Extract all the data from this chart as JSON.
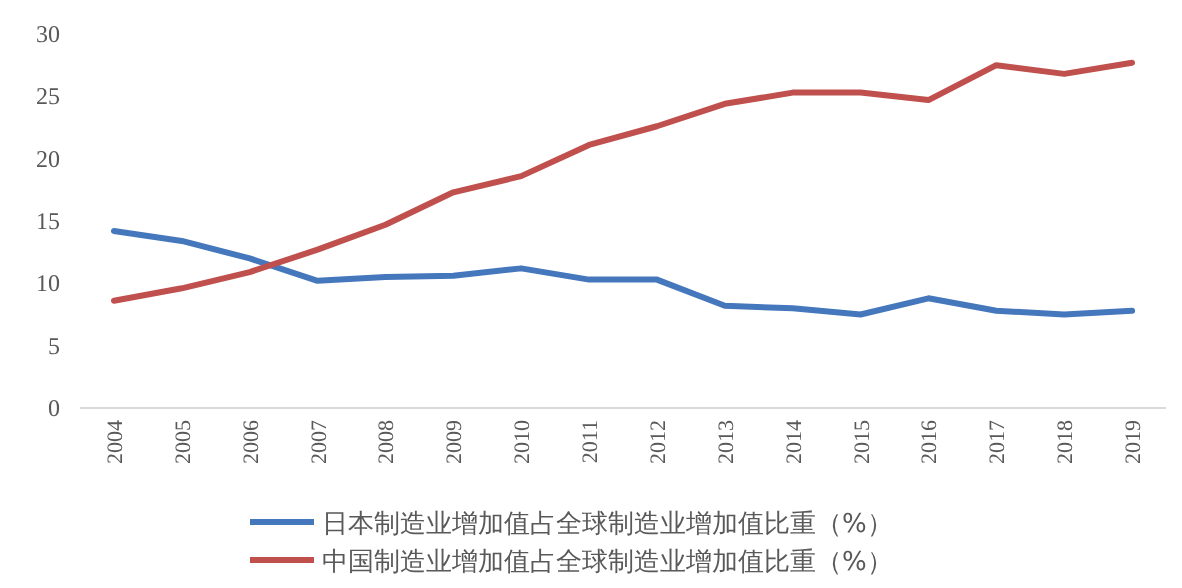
{
  "chart_data": {
    "type": "line",
    "categories": [
      "2004",
      "2005",
      "2006",
      "2007",
      "2008",
      "2009",
      "2010",
      "2011",
      "2012",
      "2013",
      "2014",
      "2015",
      "2016",
      "2017",
      "2018",
      "2019"
    ],
    "series": [
      {
        "name": "日本制造业增加值占全球制造业增加值比重（%）",
        "color": "#4577bd",
        "values": [
          14.2,
          13.4,
          12.0,
          10.2,
          10.5,
          10.6,
          11.2,
          10.3,
          10.3,
          8.2,
          8.0,
          7.5,
          8.8,
          7.8,
          7.5,
          7.8
        ]
      },
      {
        "name": "中国制造业增加值占全球制造业增加值比重（%）",
        "color": "#c0504d",
        "values": [
          8.6,
          9.6,
          10.9,
          12.7,
          14.7,
          17.3,
          18.6,
          21.1,
          22.6,
          24.4,
          25.3,
          25.3,
          24.7,
          27.5,
          26.8,
          27.7
        ]
      }
    ],
    "ylim": [
      0,
      30
    ],
    "yticks": [
      0,
      5,
      10,
      15,
      20,
      25,
      30
    ],
    "grid": false,
    "legend": "bottom",
    "marker": "none",
    "line_style": "solid"
  }
}
